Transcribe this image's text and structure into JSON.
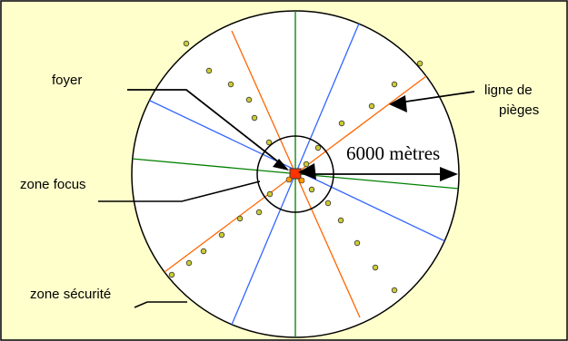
{
  "labels": {
    "foyer": "foyer",
    "zone_focus": "zone focus",
    "zone_securite": "zone sécurité",
    "ligne_de": "ligne de",
    "pieges": "pièges",
    "distance": "6000 mètres"
  },
  "colors": {
    "background": "#ffffcc",
    "frame": "#000000",
    "circle_fill": "#ffffff",
    "spoke_green": "#008000",
    "spoke_orange": "#ff6600",
    "spoke_blue": "#3366ff",
    "trap_dot": "#cccc33",
    "focus_marker": "#ff3300"
  }
}
